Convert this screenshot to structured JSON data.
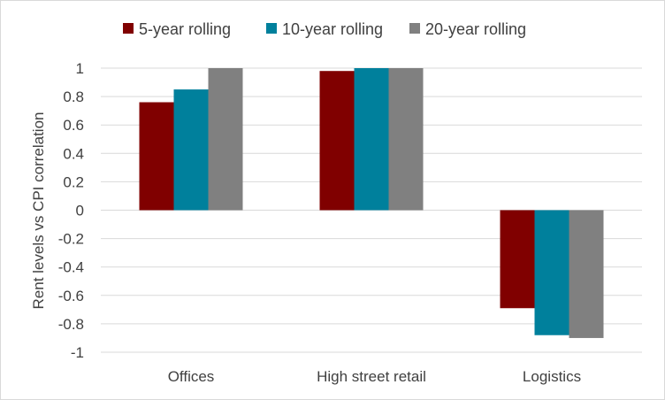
{
  "chart_data": {
    "type": "bar",
    "title": "",
    "xlabel": "",
    "ylabel": "Rent levels vs CPI correlation",
    "ylim": [
      -1,
      1
    ],
    "yticks": [
      1,
      0.8,
      0.6,
      0.4,
      0.2,
      0,
      -0.2,
      -0.4,
      -0.6,
      -0.8,
      -1
    ],
    "ytick_labels": [
      "1",
      "0.8",
      "0.6",
      "0.4",
      "0.2",
      "0",
      "-0.2",
      "-0.4",
      "-0.6",
      "-0.8",
      "-1"
    ],
    "grid": true,
    "legend_position": "top",
    "categories": [
      "Offices",
      "High street retail",
      "Logistics"
    ],
    "series": [
      {
        "name": "5-year rolling",
        "color": "#800000",
        "values": [
          0.76,
          0.98,
          -0.69
        ]
      },
      {
        "name": "10-year rolling",
        "color": "#00809C",
        "values": [
          0.85,
          1.0,
          -0.88
        ]
      },
      {
        "name": "20-year rolling",
        "color": "#808080",
        "values": [
          1.0,
          1.0,
          -0.9
        ]
      }
    ]
  }
}
